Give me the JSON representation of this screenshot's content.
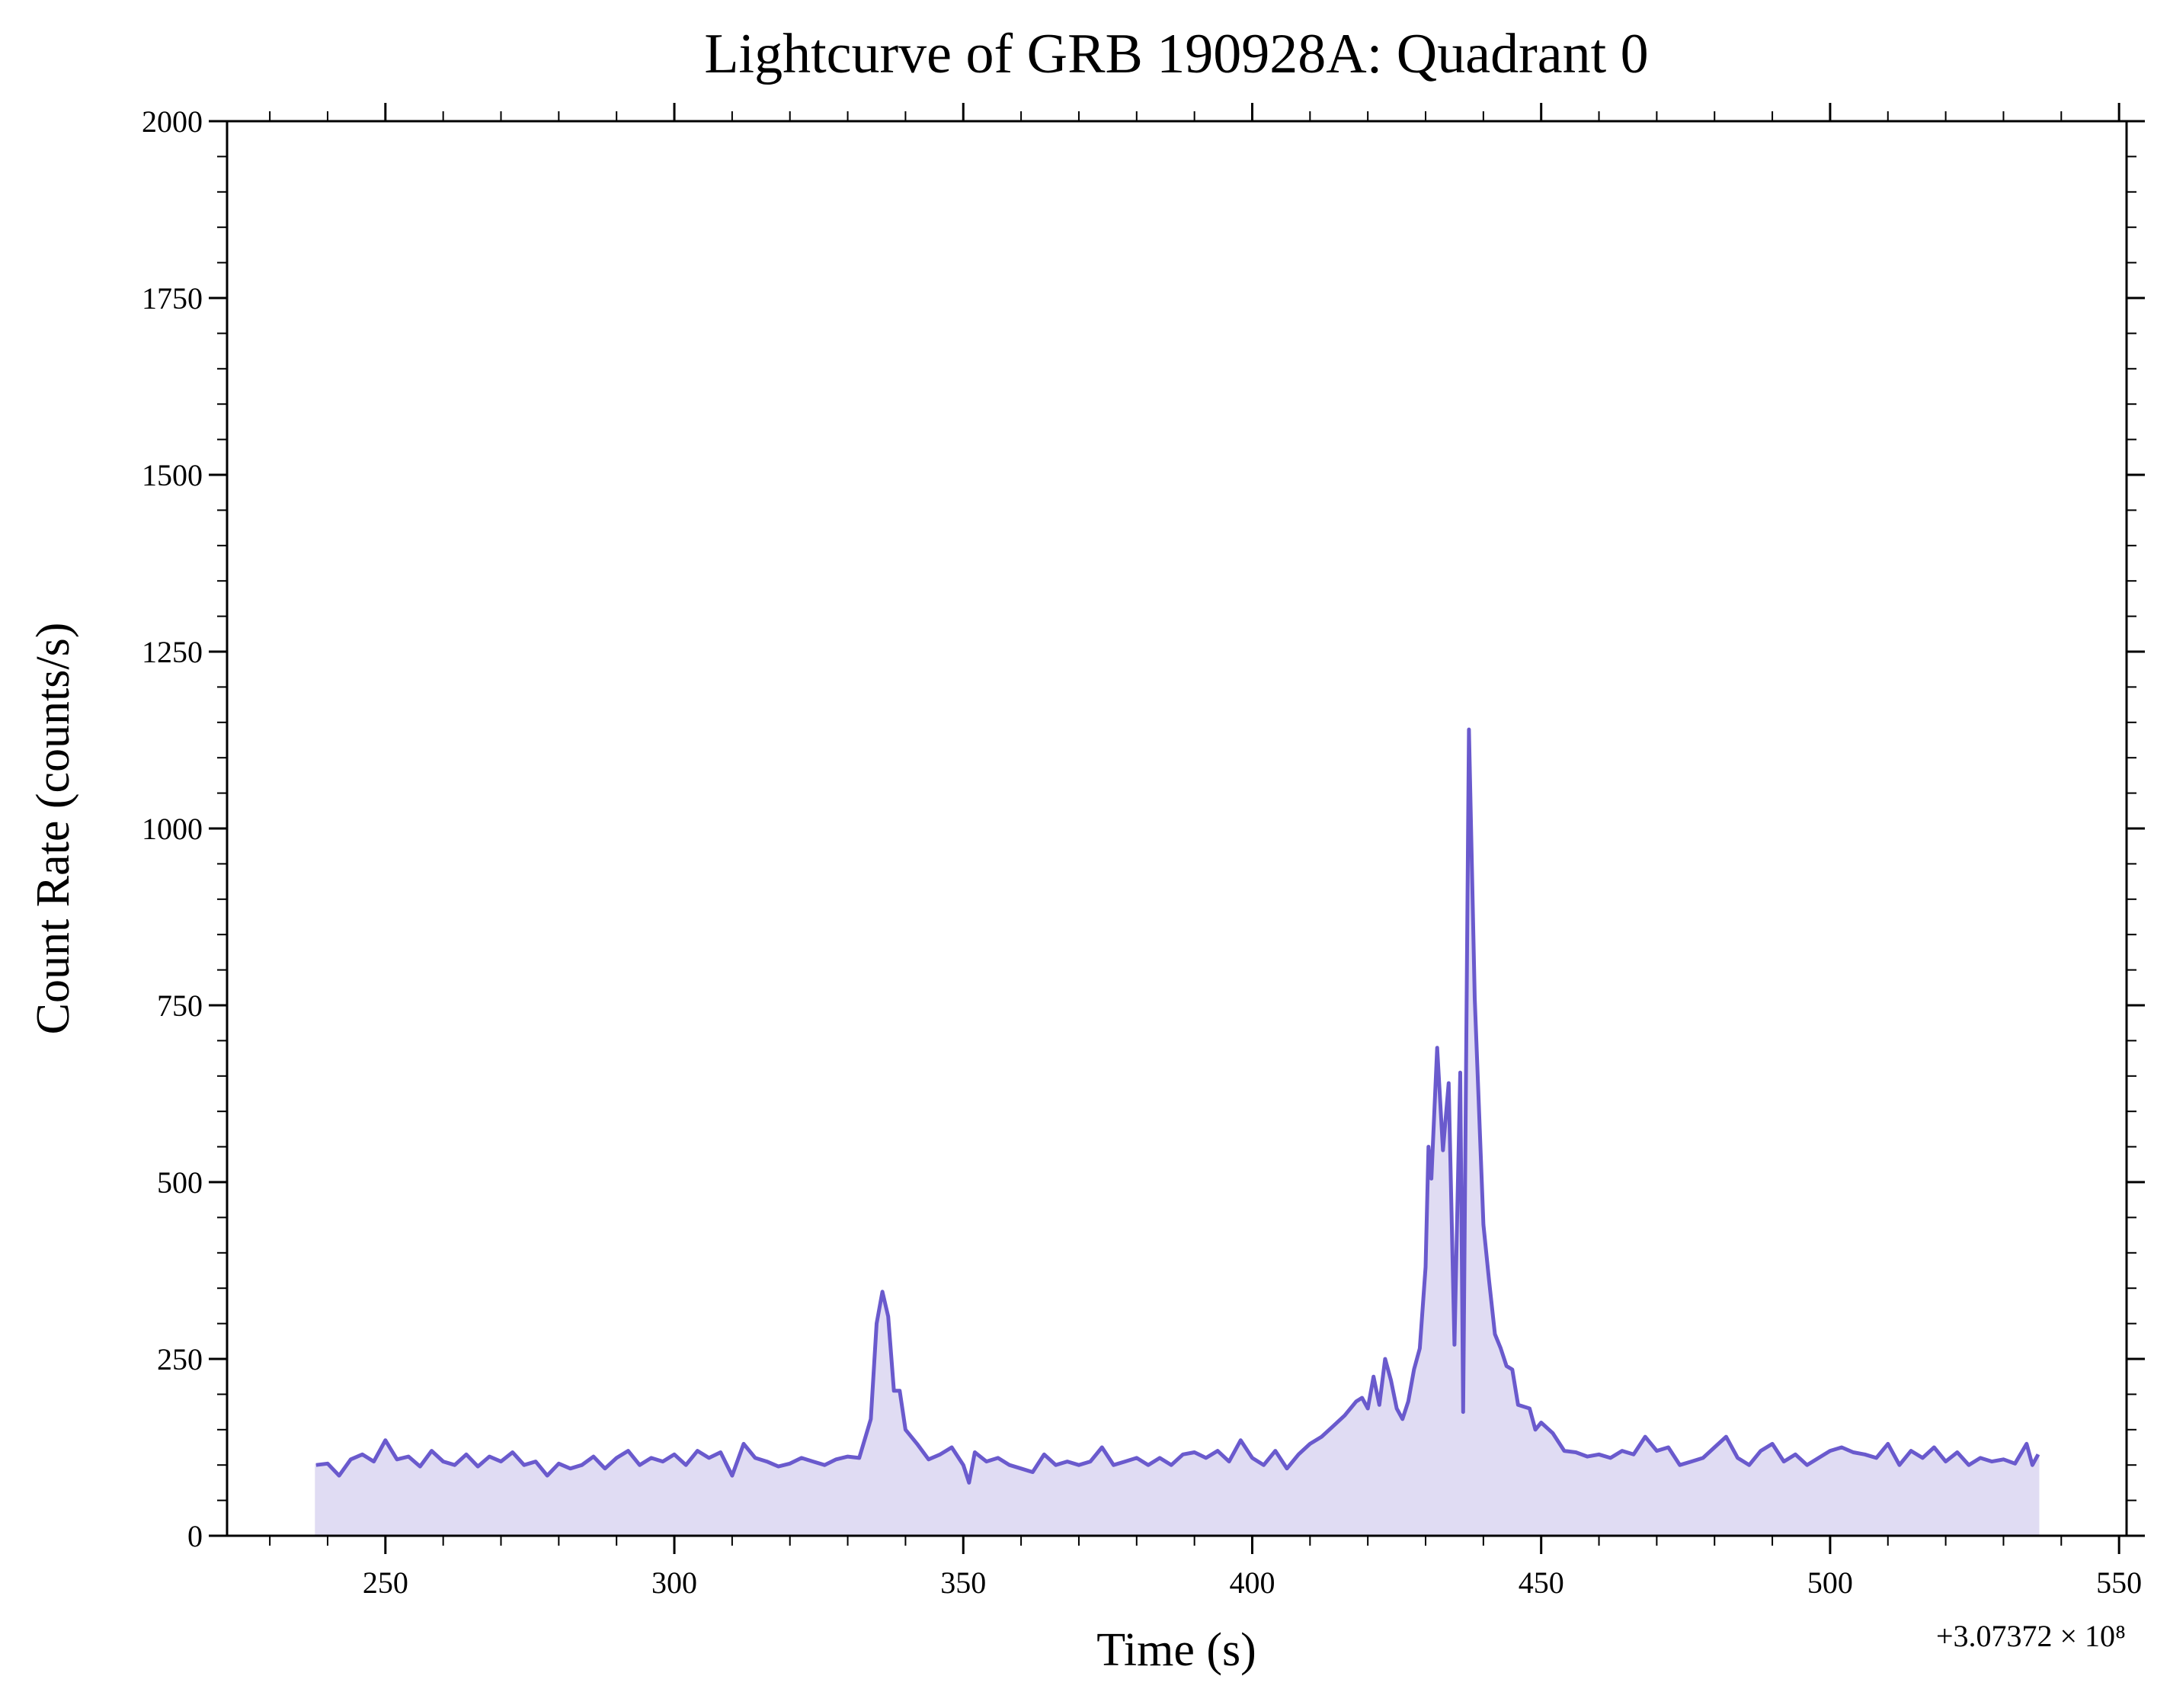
{
  "chart_data": {
    "type": "area",
    "title": "Lightcurve of GRB 190928A: Quadrant 0",
    "x_label": "Time (s)",
    "y_label": "Count Rate (counts/s)",
    "x_offset_label": "+3.07372 × 10⁸",
    "color": "#6a5acd",
    "fill_color": "#e0dcf3",
    "xlim": [
      222.6,
      551.3
    ],
    "ylim": [
      0,
      2000
    ],
    "xticks": [
      250,
      300,
      350,
      400,
      450,
      500,
      550
    ],
    "yticks": [
      0,
      250,
      500,
      750,
      1000,
      1250,
      1500,
      1750,
      2000
    ],
    "xticks_minor": [
      230,
      240,
      260,
      270,
      280,
      290,
      310,
      320,
      330,
      340,
      360,
      370,
      380,
      390,
      410,
      420,
      430,
      440,
      460,
      470,
      480,
      490,
      510,
      520,
      530,
      540
    ],
    "yticks_minor": [
      50,
      100,
      150,
      200,
      300,
      350,
      400,
      450,
      550,
      600,
      650,
      700,
      800,
      850,
      900,
      950,
      1050,
      1100,
      1150,
      1200,
      1300,
      1350,
      1400,
      1450,
      1550,
      1600,
      1650,
      1700,
      1800,
      1850,
      1900,
      1950
    ],
    "x": [
      238,
      240,
      242,
      244,
      246,
      248,
      250,
      252,
      254,
      256,
      258,
      260,
      262,
      264,
      266,
      268,
      270,
      272,
      274,
      276,
      278,
      280,
      282,
      284,
      286,
      288,
      290,
      292,
      294,
      296,
      298,
      300,
      302,
      304,
      306,
      308,
      310,
      312,
      314,
      316,
      318,
      320,
      322,
      324,
      326,
      328,
      330,
      332,
      334,
      335,
      336,
      337,
      338,
      339,
      340,
      342,
      344,
      346,
      348,
      350,
      351,
      352,
      354,
      356,
      358,
      360,
      362,
      364,
      366,
      368,
      370,
      372,
      374,
      376,
      378,
      380,
      382,
      384,
      386,
      388,
      390,
      392,
      394,
      396,
      398,
      400,
      402,
      404,
      406,
      408,
      410,
      412,
      414,
      416,
      418,
      419,
      420,
      421,
      422,
      423,
      424,
      425,
      426,
      427,
      428,
      429,
      430,
      430.5,
      431,
      432,
      433,
      434,
      435,
      436,
      436.5,
      437.5,
      438.5,
      440,
      441,
      442,
      443,
      444,
      445,
      446,
      448,
      449,
      450,
      452,
      454,
      456,
      458,
      460,
      462,
      464,
      466,
      468,
      470,
      472,
      474,
      476,
      478,
      480,
      482,
      484,
      486,
      488,
      490,
      492,
      494,
      496,
      498,
      500,
      502,
      504,
      506,
      508,
      510,
      512,
      514,
      516,
      518,
      520,
      522,
      524,
      526,
      528,
      530,
      532,
      534,
      535,
      536
    ],
    "values": [
      100,
      102,
      85,
      108,
      115,
      105,
      135,
      108,
      112,
      98,
      120,
      105,
      100,
      115,
      98,
      112,
      105,
      118,
      100,
      105,
      85,
      102,
      95,
      100,
      112,
      95,
      110,
      120,
      100,
      110,
      105,
      115,
      100,
      120,
      110,
      118,
      85,
      130,
      110,
      105,
      98,
      102,
      110,
      105,
      100,
      108,
      112,
      110,
      165,
      300,
      345,
      310,
      205,
      205,
      150,
      130,
      108,
      115,
      125,
      100,
      75,
      118,
      105,
      110,
      100,
      95,
      90,
      115,
      100,
      105,
      100,
      105,
      125,
      100,
      105,
      110,
      100,
      110,
      100,
      115,
      118,
      110,
      120,
      105,
      135,
      110,
      100,
      120,
      95,
      115,
      130,
      140,
      155,
      170,
      190,
      195,
      180,
      225,
      185,
      250,
      220,
      180,
      165,
      190,
      235,
      265,
      380,
      550,
      505,
      690,
      545,
      640,
      270,
      655,
      175,
      1140,
      760,
      440,
      360,
      285,
      265,
      240,
      235,
      185,
      180,
      150,
      160,
      145,
      120,
      118,
      112,
      115,
      110,
      120,
      115,
      140,
      120,
      125,
      100,
      105,
      110,
      125,
      140,
      110,
      100,
      120,
      130,
      105,
      115,
      100,
      110,
      120,
      125,
      118,
      115,
      110,
      130,
      100,
      120,
      110,
      125,
      105,
      118,
      100,
      110,
      105,
      108,
      102,
      130,
      100,
      115
    ]
  }
}
